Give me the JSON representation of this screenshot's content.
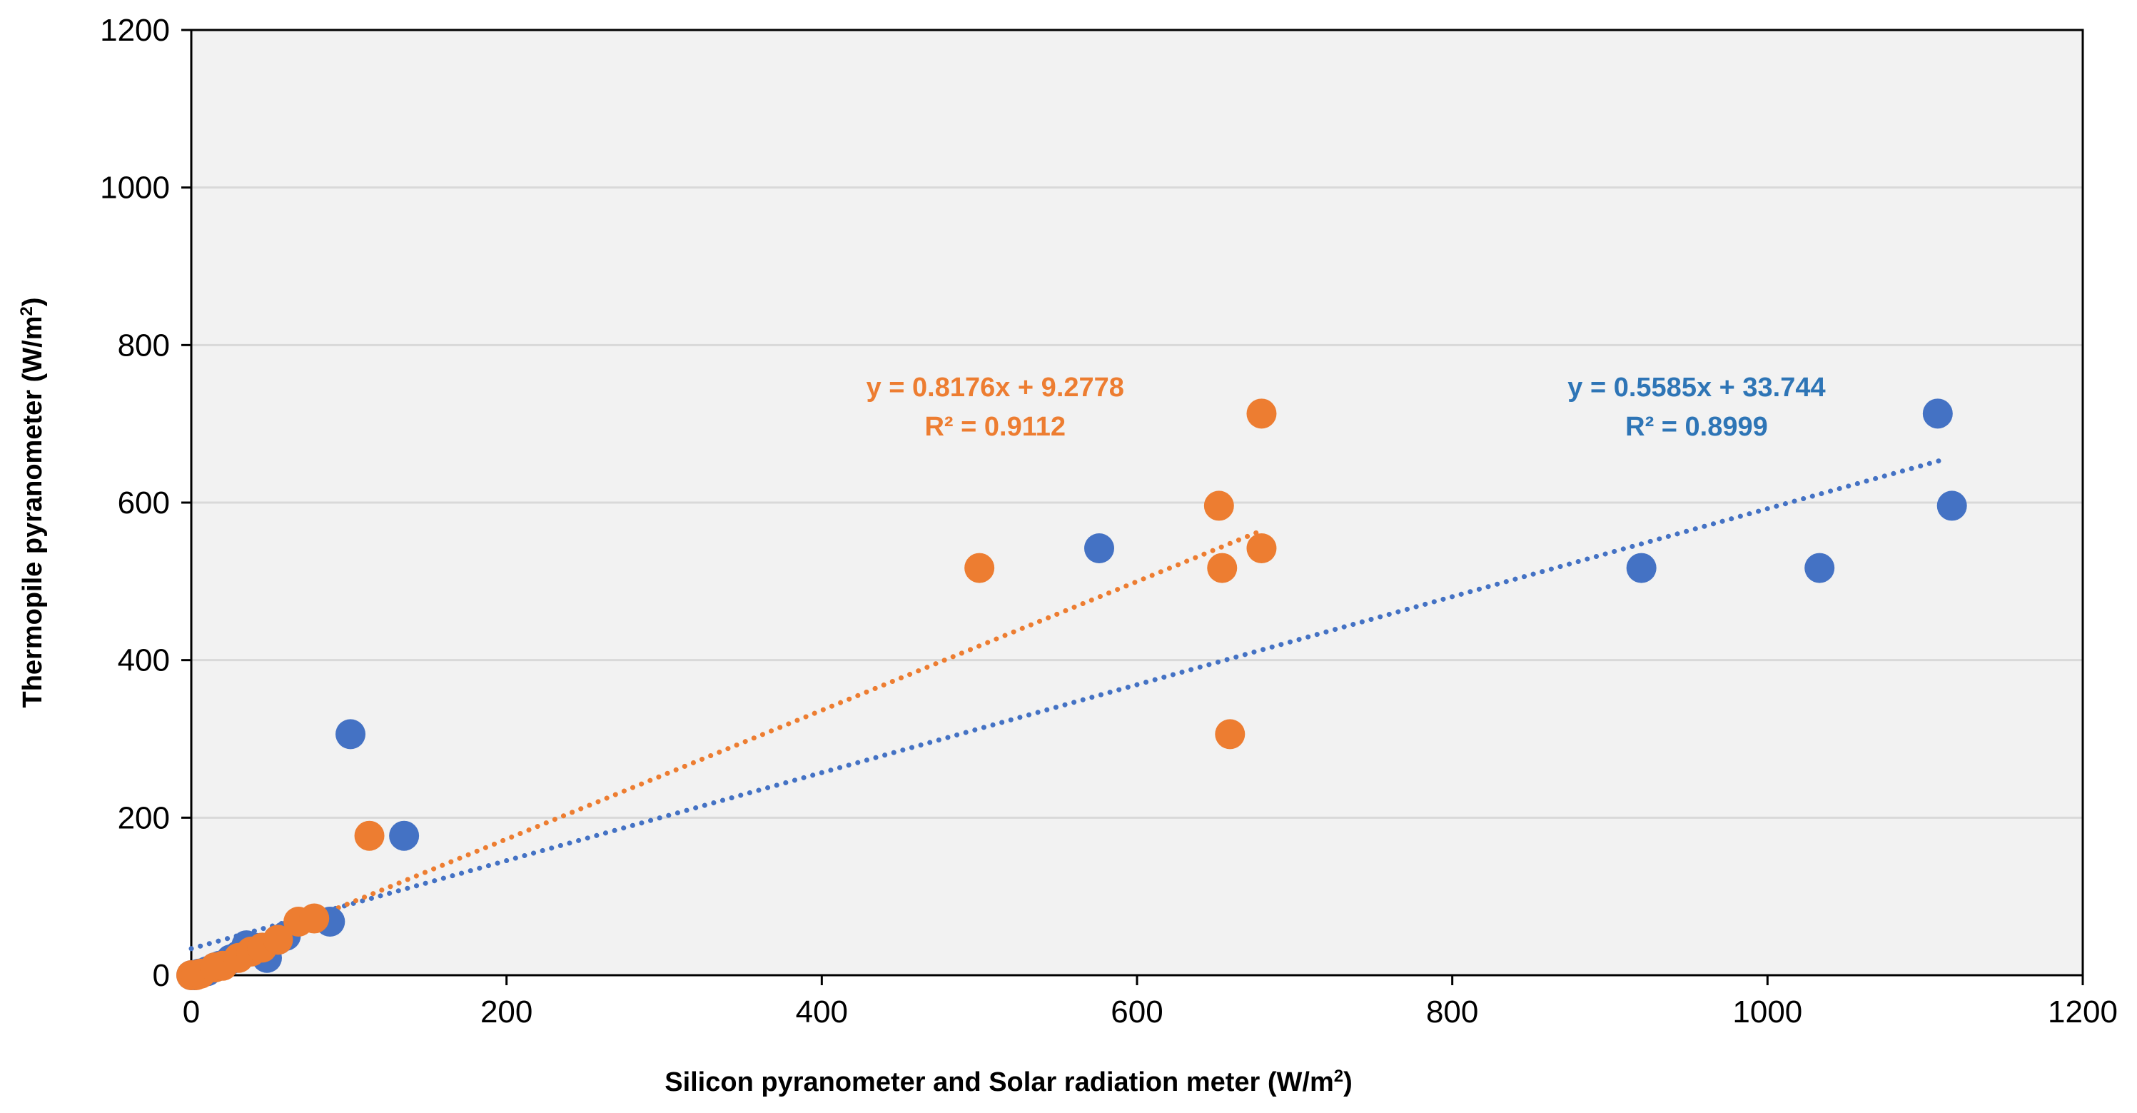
{
  "chart_data": {
    "type": "scatter",
    "title": "",
    "xlabel": {
      "main": "Silicon pyranometer and Solar radiation meter (W/m",
      "sup": "2",
      "end": ")"
    },
    "ylabel": {
      "main": "Thermopile pyranometer (W/m",
      "sup": "2",
      "end": ")"
    },
    "xlim": [
      0,
      1200
    ],
    "ylim": [
      0,
      1200
    ],
    "xticks": [
      0,
      200,
      400,
      600,
      800,
      1000,
      1200
    ],
    "yticks": [
      0,
      200,
      400,
      600,
      800,
      1000,
      1200
    ],
    "grid": "horizontal",
    "series": [
      {
        "name": "blue-series",
        "color": "#4472C4",
        "points": [
          [
            0,
            0
          ],
          [
            2,
            0
          ],
          [
            5,
            2
          ],
          [
            10,
            5
          ],
          [
            15,
            10
          ],
          [
            18,
            12
          ],
          [
            25,
            20
          ],
          [
            30,
            25
          ],
          [
            35,
            38
          ],
          [
            40,
            35
          ],
          [
            48,
            22
          ],
          [
            55,
            45
          ],
          [
            60,
            50
          ],
          [
            88,
            68
          ],
          [
            101,
            306
          ],
          [
            135,
            177
          ],
          [
            576,
            542
          ],
          [
            920,
            517
          ],
          [
            1033,
            517
          ],
          [
            1108,
            713
          ],
          [
            1117,
            596
          ]
        ],
        "trendline": {
          "slope": 0.5585,
          "intercept": 33.744,
          "x_range": [
            0,
            1110
          ],
          "equation": "y = 0.5585x + 33.744",
          "r2": "R² = 0.8999",
          "label_color": "#2E75B6"
        }
      },
      {
        "name": "orange-series",
        "color": "#ED7D31",
        "points": [
          [
            0,
            0
          ],
          [
            3,
            0
          ],
          [
            6,
            2
          ],
          [
            15,
            10
          ],
          [
            20,
            12
          ],
          [
            30,
            22
          ],
          [
            38,
            30
          ],
          [
            45,
            35
          ],
          [
            55,
            45
          ],
          [
            68,
            68
          ],
          [
            78,
            72
          ],
          [
            113,
            177
          ],
          [
            500,
            517
          ],
          [
            652,
            596
          ],
          [
            654,
            517
          ],
          [
            659,
            306
          ],
          [
            679,
            713
          ],
          [
            679,
            542
          ]
        ],
        "trendline": {
          "slope": 0.8176,
          "intercept": 9.2778,
          "x_range": [
            0,
            680
          ],
          "equation": "y = 0.8176x + 9.2778",
          "r2": "R² = 0.9112",
          "label_color": "#ED7D31"
        }
      }
    ]
  }
}
